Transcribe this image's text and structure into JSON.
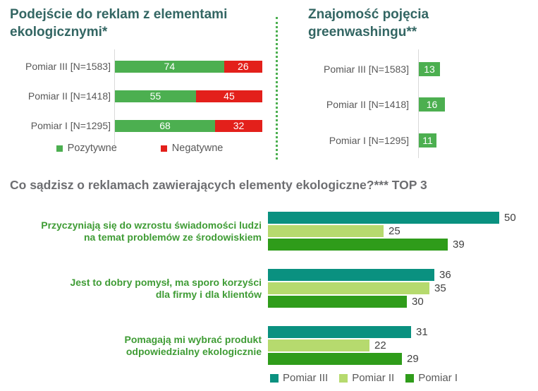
{
  "colors": {
    "title": "#336663",
    "section_title": "#6D6E71",
    "label_gray": "#595959",
    "value_dark": "#3F3F3F",
    "group_label_green": "#3F9C35",
    "divider_green": "#4CAF50",
    "axis_gray": "#D9D9D9",
    "positive_green": "#4CAF50",
    "negative_red": "#E3201B",
    "pomiar3_teal": "#0A9180",
    "pomiar2_light_green": "#B6DA6E",
    "pomiar1_green": "#2F9C1A"
  },
  "ui": {
    "bottom_group_label_lines": [
      [
        "Przyczyniają się do wzrostu świadomości ludzi",
        "na temat problemów ze środowiskiem"
      ],
      [
        "Jest to dobry pomysł, ma sporo korzyści",
        "dla firmy i dla klientów"
      ],
      [
        "Pomagają mi wybrać produkt",
        "odpowiedzialny ekologicznie"
      ]
    ]
  },
  "chart_data": [
    {
      "type": "bar",
      "orientation": "horizontal",
      "stacked": true,
      "title": "Podejście do reklam z elementami ekologicznymi*",
      "categories": [
        "Pomiar III [N=1583]",
        "Pomiar II [N=1418]",
        "Pomiar I [N=1295]"
      ],
      "series": [
        {
          "name": "Pozytywne",
          "color": "#4CAF50",
          "values": [
            74,
            55,
            68
          ]
        },
        {
          "name": "Negatywne",
          "color": "#E3201B",
          "values": [
            26,
            45,
            32
          ]
        }
      ],
      "xlim": [
        0,
        100
      ],
      "legend_position": "bottom",
      "data_labels": "inside, white"
    },
    {
      "type": "bar",
      "orientation": "horizontal",
      "title": "Znajomość pojęcia greenwashingu**",
      "categories": [
        "Pomiar III [N=1583]",
        "Pomiar II [N=1418]",
        "Pomiar I [N=1295]"
      ],
      "values": [
        13,
        16,
        11
      ],
      "color": "#4CAF50",
      "xlim": [
        0,
        100
      ],
      "data_labels": "inside, white"
    },
    {
      "type": "bar",
      "orientation": "horizontal",
      "grouped": true,
      "title": "Co sądzisz o reklamach zawierających elementy ekologiczne?*** TOP 3",
      "categories": [
        "Przyczyniają się do wzrostu świadomości ludzi na temat problemów ze środowiskiem",
        "Jest to dobry pomysł, ma sporo korzyści dla firmy i dla klientów",
        "Pomagają mi wybrać produkt odpowiedzialny ekologicznie"
      ],
      "series": [
        {
          "name": "Pomiar III",
          "color": "#0A9180",
          "values": [
            50,
            36,
            31
          ]
        },
        {
          "name": "Pomiar II",
          "color": "#B6DA6E",
          "values": [
            25,
            35,
            22
          ]
        },
        {
          "name": "Pomiar I",
          "color": "#2F9C1A",
          "values": [
            39,
            30,
            29
          ]
        }
      ],
      "xlim": [
        0,
        100
      ],
      "legend_position": "bottom",
      "data_labels": "outside, dark"
    }
  ]
}
